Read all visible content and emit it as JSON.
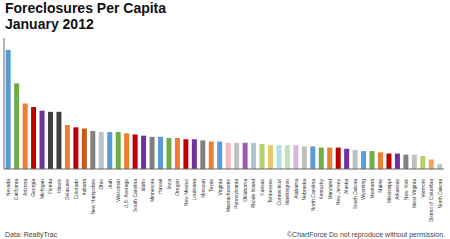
{
  "chart_data": {
    "type": "bar",
    "title": "Foreclosures Per Capita",
    "subtitle": "January 2012",
    "annotations": [
      "Data: RealtyTrac",
      "©ChartForce  Do not reproduce without permission."
    ],
    "categories": [
      "Nevada",
      "California",
      "Arizona",
      "Georgia",
      "Michigan",
      "Florida",
      "Illinois",
      "Delaware",
      "Colorado",
      "Indiana",
      "New Hampshire",
      "Ohio",
      "Utah",
      "Wisconsin",
      "U.S. Average",
      "South Carolina",
      "Idaho",
      "Minnesota",
      "Hawaii",
      "Iowa",
      "Oregon",
      "New Mexico",
      "Louisiana",
      "Missouri",
      "Texas",
      "Virginia",
      "Massachusetts",
      "Pennsylvania",
      "Oklahoma",
      "Rhode Island",
      "Kansas",
      "Tennessee",
      "Connecticut",
      "Washington",
      "Alabama",
      "Nebraska",
      "North Carolina",
      "Kentucky",
      "Maryland",
      "New Jersey",
      "Alaska",
      "South Dakota",
      "Wyoming",
      "Montana",
      "Maine",
      "Mississippi",
      "Arkansas",
      "New York",
      "West Virginia",
      "Vermont",
      "District of Columbia",
      "North Dakota"
    ],
    "values": [
      100,
      72,
      55,
      52,
      49,
      48,
      48,
      37,
      35,
      34,
      32,
      31,
      31,
      31,
      30,
      29,
      28,
      27,
      27,
      26,
      26,
      25,
      25,
      24,
      23,
      23,
      22,
      22,
      22,
      22,
      21,
      20,
      20,
      20,
      20,
      19,
      19,
      18,
      18,
      18,
      17,
      16,
      15,
      15,
      14,
      13,
      13,
      12,
      12,
      11,
      8,
      4
    ],
    "colors": [
      "#5b9bd5",
      "#70ad47",
      "#ed7d31",
      "#c00000",
      "#7030a0",
      "#404040",
      "#404040",
      "#ed7d31",
      "#c00000",
      "#c55a11",
      "#808080",
      "#c0c0c0",
      "#5b9bd5",
      "#70ad47",
      "#ed7d31",
      "#c00000",
      "#7030a0",
      "#808080",
      "#5b9bd5",
      "#70ad47",
      "#ed7d31",
      "#c00000",
      "#7030a0",
      "#808080",
      "#ed7d31",
      "#5b9bd5",
      "#f4b8c1",
      "#c0c0c0",
      "#9b59b6",
      "#aec6cf",
      "#b5cf6b",
      "#e8c96e",
      "#b2dfdb",
      "#c5e0b4",
      "#d9b3d9",
      "#c0c0c0",
      "#5b9bd5",
      "#70ad47",
      "#ed7d31",
      "#c00000",
      "#7030a0",
      "#c0c0c0",
      "#5b9bd5",
      "#70ad47",
      "#ed7d31",
      "#c00000",
      "#7030a0",
      "#808080",
      "#c0c0c0",
      "#b5cf6b",
      "#f4a460",
      "#aec6cf"
    ],
    "ylim": [
      0,
      110
    ],
    "grid": false,
    "tick_labels": "x"
  }
}
